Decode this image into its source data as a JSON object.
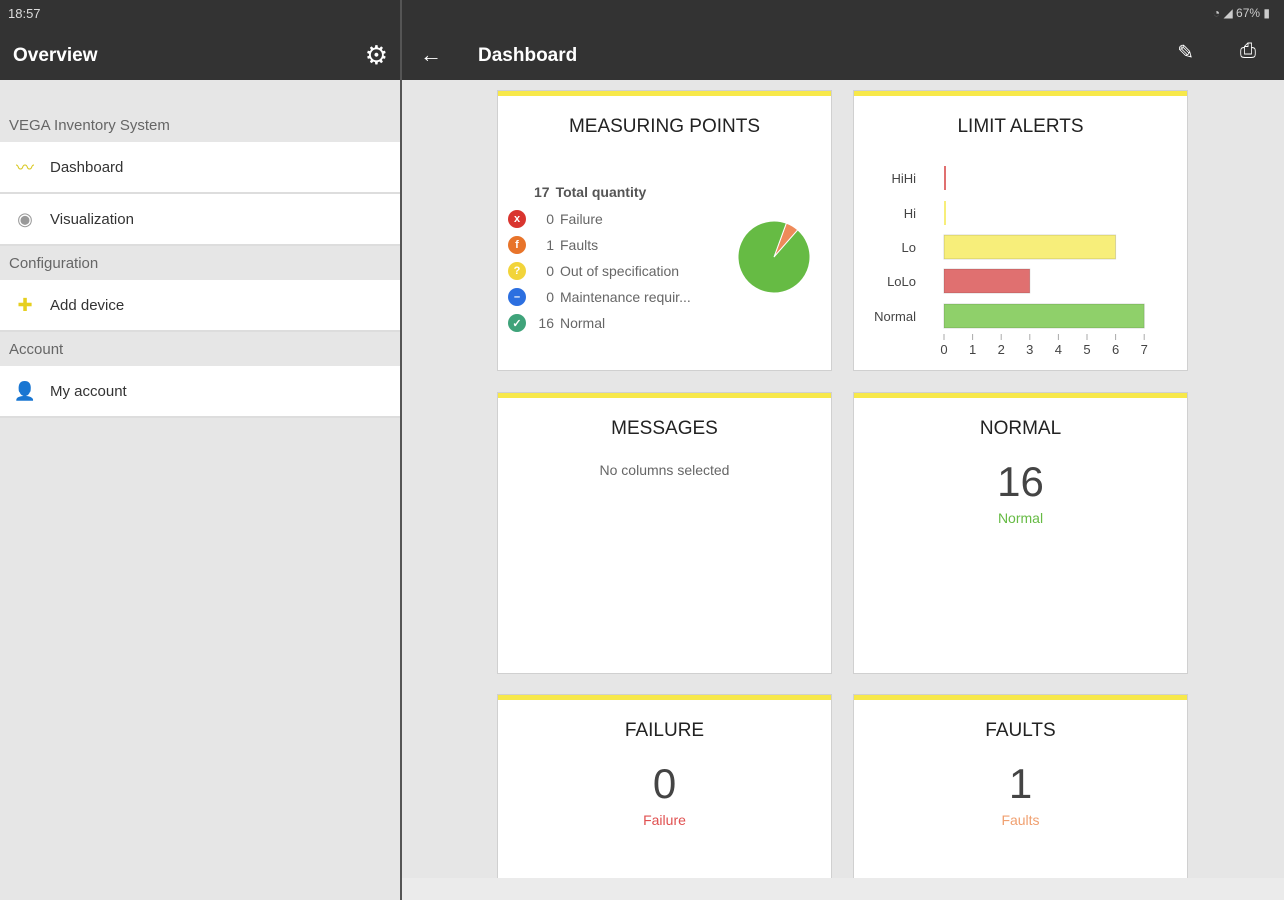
{
  "status": {
    "time": "18:57",
    "battery": "67%"
  },
  "sidebar": {
    "title": "Overview",
    "sections": [
      {
        "label": "VEGA Inventory System",
        "items": [
          "Dashboard",
          "Visualization"
        ]
      },
      {
        "label": "Configuration",
        "items": [
          "Add device"
        ]
      },
      {
        "label": "Account",
        "items": [
          "My account"
        ]
      }
    ]
  },
  "header": {
    "title": "Dashboard"
  },
  "measuring": {
    "title": "MEASURING POINTS",
    "total": "17",
    "total_label": "Total quantity",
    "legend": [
      {
        "n": "0",
        "label": "Failure",
        "color": "#d9352f",
        "icon": "x"
      },
      {
        "n": "1",
        "label": "Faults",
        "color": "#e8742a",
        "icon": "f"
      },
      {
        "n": "0",
        "label": "Out of specification",
        "color": "#f2d43a",
        "icon": "?"
      },
      {
        "n": "0",
        "label": "Maintenance requir...",
        "color": "#2c6fe0",
        "icon": "–"
      },
      {
        "n": "16",
        "label": "Normal",
        "color": "#3fa37a",
        "icon": "✓"
      }
    ]
  },
  "limit": {
    "title": "LIMIT ALERTS"
  },
  "messages": {
    "title": "MESSAGES",
    "text": "No columns selected"
  },
  "normal": {
    "title": "NORMAL",
    "value": "16",
    "label": "Normal"
  },
  "failure": {
    "title": "FAILURE",
    "value": "0",
    "label": "Failure"
  },
  "faults": {
    "title": "FAULTS",
    "value": "1",
    "label": "Faults"
  },
  "chart_data": [
    {
      "type": "bar",
      "title": "LIMIT ALERTS",
      "orientation": "horizontal",
      "categories": [
        "HiHi",
        "Hi",
        "Lo",
        "LoLo",
        "Normal"
      ],
      "values": [
        0,
        0,
        6,
        3,
        7
      ],
      "colors": [
        "#e07070",
        "#f7ee7a",
        "#f7ee7a",
        "#e07070",
        "#8fd06a"
      ],
      "xlim": [
        0,
        7
      ],
      "xticks": [
        "0",
        "1",
        "2",
        "3",
        "4",
        "5",
        "6",
        "7"
      ]
    },
    {
      "type": "pie",
      "categories": [
        "Faults",
        "Normal"
      ],
      "values": [
        1,
        16
      ],
      "colors": [
        "#ee8a5a",
        "#66bb44"
      ]
    }
  ]
}
